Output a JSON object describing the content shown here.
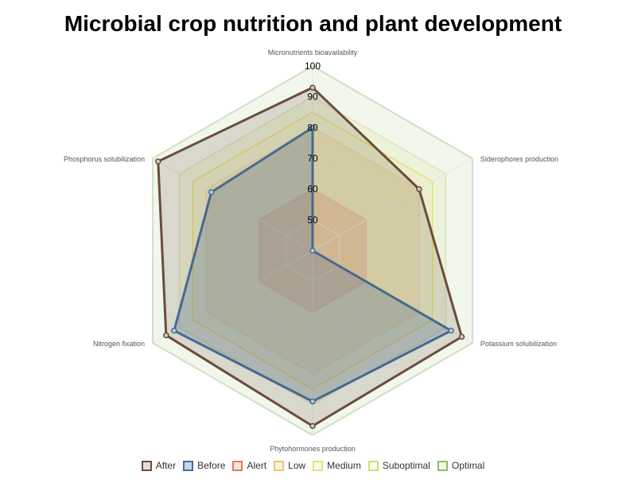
{
  "chart_data": {
    "type": "radar",
    "title": "Microbial crop nutrition and plant development",
    "axes": [
      "Micronutrients bioavailability",
      "Siderophores production",
      "Potassium solubilization",
      "Phytohormones production",
      "Nitrogen fixation",
      "Phosphorus solubilization"
    ],
    "r_range": [
      40,
      100
    ],
    "ticks": [
      50,
      60,
      70,
      80,
      90,
      100
    ],
    "series": [
      {
        "name": "After",
        "values": [
          93,
          80,
          96,
          97,
          95,
          98
        ],
        "color": "#6b4c3b",
        "fill": "rgba(107,76,59,0.18)",
        "markers": true
      },
      {
        "name": "Before",
        "values": [
          80,
          40,
          92,
          89,
          92,
          78
        ],
        "color": "#3f6fa0",
        "fill": "rgba(63,111,160,0.28)",
        "markers": true
      },
      {
        "name": "Alert",
        "values": [
          60,
          60,
          60,
          60,
          60,
          60
        ],
        "color": "#e07b5a",
        "fill": "rgba(224,123,90,0.22)"
      },
      {
        "name": "Low",
        "values": [
          80,
          80,
          80,
          80,
          80,
          80
        ],
        "color": "#f0c46a",
        "fill": "rgba(240,196,106,0.18)"
      },
      {
        "name": "Medium",
        "values": [
          85,
          85,
          85,
          85,
          85,
          85
        ],
        "color": "#e8e07a",
        "fill": "rgba(232,224,122,0.15)"
      },
      {
        "name": "Suboptimal",
        "values": [
          90,
          90,
          90,
          90,
          90,
          90
        ],
        "color": "#cfe07a",
        "fill": "rgba(207,224,122,0.15)"
      },
      {
        "name": "Optimal",
        "values": [
          100,
          100,
          100,
          100,
          100,
          100
        ],
        "color": "#8cc063",
        "fill": "rgba(140,192,99,0.12)"
      }
    ],
    "legend_position": "bottom"
  }
}
